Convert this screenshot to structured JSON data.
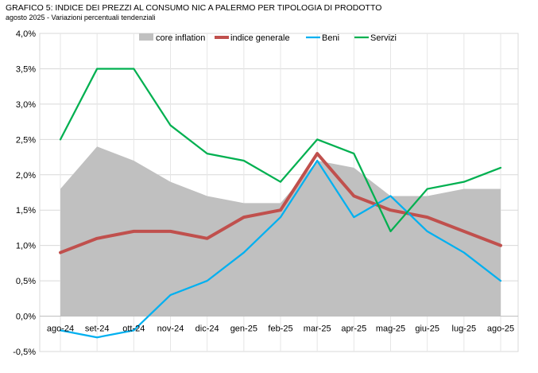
{
  "header": {
    "title": "GRAFICO 5: INDICE DEI PREZZI AL CONSUMO NIC A PALERMO PER TIPOLOGIA DI PRODOTTO",
    "subtitle": "agosto 2025 - Variazioni percentuali tendenziali"
  },
  "chart_data": {
    "type": "line",
    "title": "GRAFICO 5: INDICE DEI PREZZI AL CONSUMO NIC A PALERMO PER TIPOLOGIA DI PRODOTTO",
    "subtitle": "agosto 2025 - Variazioni percentuali tendenziali",
    "xlabel": "",
    "ylabel": "",
    "categories": [
      "ago-24",
      "set-24",
      "ott-24",
      "nov-24",
      "dic-24",
      "gen-25",
      "feb-25",
      "mar-25",
      "apr-25",
      "mag-25",
      "giu-25",
      "lug-25",
      "ago-25"
    ],
    "ylim": [
      -0.5,
      4.0
    ],
    "yticks": [
      -0.5,
      0.0,
      0.5,
      1.0,
      1.5,
      2.0,
      2.5,
      3.0,
      3.5,
      4.0
    ],
    "ytick_labels": [
      "-0,5%",
      "0,0%",
      "0,5%",
      "1,0%",
      "1,5%",
      "2,0%",
      "2,5%",
      "3,0%",
      "3,5%",
      "4,0%"
    ],
    "grid": true,
    "legend_position": "top",
    "series": [
      {
        "name": "core inflation",
        "kind": "area",
        "color": "#c0c0c0",
        "values": [
          1.8,
          2.4,
          2.2,
          1.9,
          1.7,
          1.6,
          1.6,
          2.2,
          2.1,
          1.7,
          1.7,
          1.8,
          1.8
        ]
      },
      {
        "name": "indice generale",
        "kind": "line",
        "color": "#c0504d",
        "values": [
          0.9,
          1.1,
          1.2,
          1.2,
          1.1,
          1.4,
          1.5,
          2.3,
          1.7,
          1.5,
          1.4,
          1.2,
          1.0
        ]
      },
      {
        "name": "Beni",
        "kind": "line",
        "color": "#00b0f0",
        "values": [
          -0.2,
          -0.3,
          -0.2,
          0.3,
          0.5,
          0.9,
          1.4,
          2.2,
          1.4,
          1.7,
          1.2,
          0.9,
          0.5
        ]
      },
      {
        "name": "Servizi",
        "kind": "line",
        "color": "#00b050",
        "values": [
          2.5,
          3.5,
          3.5,
          2.7,
          2.3,
          2.2,
          1.9,
          2.5,
          2.3,
          1.2,
          1.8,
          1.9,
          2.1
        ]
      }
    ]
  }
}
